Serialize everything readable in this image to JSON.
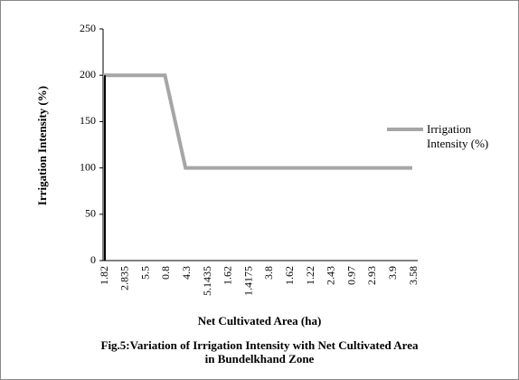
{
  "chart_data": {
    "type": "line",
    "title": [
      "Fig.5:Variation of Irrigation Intensity with Net Cultivated Area",
      "in Bundelkhand Zone"
    ],
    "xlabel": "Net Cultivated Area (ha)",
    "ylabel": "Irrigation Intensity (%)",
    "categories": [
      "1.82",
      "2.835",
      "5.5",
      "0.8",
      "4.3",
      "5.1435",
      "1.62",
      "1.4175",
      "3.8",
      "1.62",
      "1.22",
      "2.43",
      "0.97",
      "2.93",
      "3.9",
      "3.58"
    ],
    "series": [
      {
        "name": "Irrigation Intensity (%)",
        "color": "#a6a6a6",
        "values": [
          200,
          200,
          200,
          200,
          100,
          100,
          100,
          100,
          100,
          100,
          100,
          100,
          100,
          100,
          100,
          100
        ]
      }
    ],
    "ylim": [
      0,
      250
    ],
    "yticks": [
      0,
      50,
      100,
      150,
      200,
      250
    ],
    "grid": false,
    "legend": "right"
  }
}
